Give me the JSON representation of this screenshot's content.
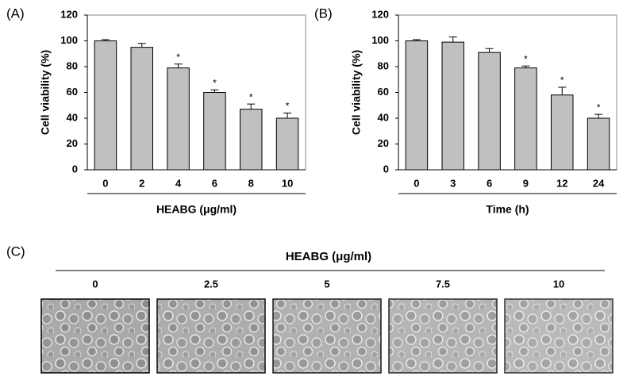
{
  "chart_data": [
    {
      "type": "bar",
      "panel_label": "(A)",
      "ylabel": "Cell viability (%)",
      "xlabel": "HEABG (μg/ml)",
      "categories": [
        "0",
        "2",
        "4",
        "6",
        "8",
        "10"
      ],
      "values": [
        100,
        95,
        79,
        60,
        47,
        40
      ],
      "errors": [
        1,
        3,
        3,
        2,
        4,
        4
      ],
      "significance": [
        null,
        null,
        "*",
        "*",
        "*",
        "*"
      ],
      "color": "#c0c0c0",
      "ylim": [
        0,
        120
      ],
      "yticks": [
        0,
        20,
        40,
        60,
        80,
        100,
        120
      ]
    },
    {
      "type": "bar",
      "panel_label": "(B)",
      "ylabel": "Cell viability (%)",
      "xlabel": "Time (h)",
      "categories": [
        "0",
        "3",
        "6",
        "9",
        "12",
        "24"
      ],
      "values": [
        100,
        99,
        91,
        79,
        58,
        40
      ],
      "errors": [
        1,
        4,
        3,
        1.5,
        6,
        3
      ],
      "significance": [
        null,
        null,
        null,
        "*",
        "*",
        "*"
      ],
      "color": "#c0c0c0",
      "ylim": [
        0,
        120
      ],
      "yticks": [
        0,
        20,
        40,
        60,
        80,
        100,
        120
      ]
    }
  ],
  "panel_c": {
    "panel_label": "(C)",
    "title": "HEABG (μg/ml)",
    "labels": [
      "0",
      "2.5",
      "5",
      "7.5",
      "10"
    ]
  }
}
